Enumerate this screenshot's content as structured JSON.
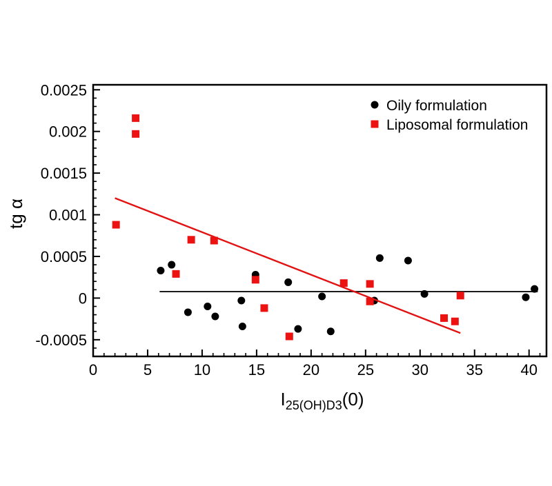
{
  "figure": {
    "ylabel": "tg α",
    "xlabel_prefix": "I",
    "xlabel_subscript": "25(OH)D3",
    "xlabel_suffix": "(0)"
  },
  "chart_data": {
    "type": "scatter",
    "title": "",
    "xlabel": "I25(OH)D3(0)",
    "ylabel": "tg α",
    "xlim": [
      0,
      41.6
    ],
    "ylim": [
      -0.0007,
      0.00256
    ],
    "grid": false,
    "legend_position": "top-right-inside",
    "x_major_ticks": [
      0,
      5,
      10,
      15,
      20,
      25,
      30,
      35,
      40
    ],
    "x_tick_labels": [
      "0",
      "5",
      "10",
      "15",
      "20",
      "25",
      "30",
      "35",
      "40"
    ],
    "x_minor_step": 1,
    "y_major_ticks": [
      -0.0005,
      0,
      0.0005,
      0.001,
      0.0015,
      0.002,
      0.0025
    ],
    "y_tick_labels": [
      "-0.0005",
      "0",
      "0.0005",
      "0.001",
      "0.0015",
      "0.002",
      "0.0025"
    ],
    "y_minor_step": 0.0001,
    "colors": {
      "oily": "#000000",
      "liposomal": "#ec1212"
    },
    "series": [
      {
        "name": "Oily formulation",
        "marker": "circle",
        "color": "#000000",
        "points": [
          [
            6.2,
            0.00033
          ],
          [
            7.2,
            0.0004
          ],
          [
            8.7,
            -0.00017
          ],
          [
            10.5,
            -0.0001
          ],
          [
            11.2,
            -0.00022
          ],
          [
            13.6,
            -3e-05
          ],
          [
            13.7,
            -0.00034
          ],
          [
            14.9,
            0.00028
          ],
          [
            17.9,
            0.00019
          ],
          [
            18.8,
            -0.00037
          ],
          [
            21.0,
            2e-05
          ],
          [
            21.8,
            -0.0004
          ],
          [
            25.8,
            -3e-05
          ],
          [
            26.3,
            0.00048
          ],
          [
            28.9,
            0.00045
          ],
          [
            30.4,
            5e-05
          ],
          [
            39.7,
            1e-05
          ],
          [
            40.5,
            0.00011
          ]
        ],
        "trend_line": {
          "x1": 6.1,
          "y1": 7.8e-05,
          "x2": 40.8,
          "y2": 7.8e-05,
          "color": "#1a1a1a"
        }
      },
      {
        "name": "Liposomal formulation",
        "marker": "square",
        "color": "#ec1212",
        "points": [
          [
            2.1,
            0.00088
          ],
          [
            3.9,
            0.00216
          ],
          [
            3.9,
            0.00197
          ],
          [
            7.6,
            0.00029
          ],
          [
            9.0,
            0.0007
          ],
          [
            11.1,
            0.00069
          ],
          [
            14.9,
            0.00022
          ],
          [
            15.7,
            -0.00012
          ],
          [
            18.0,
            -0.00046
          ],
          [
            23.0,
            0.00018
          ],
          [
            25.4,
            0.00017
          ],
          [
            25.4,
            -4e-05
          ],
          [
            32.2,
            -0.00024
          ],
          [
            33.2,
            -0.00028
          ],
          [
            33.7,
            3e-05
          ]
        ],
        "trend_line": {
          "x1": 2.0,
          "y1": 0.0012,
          "x2": 33.7,
          "y2": -0.00042,
          "color": "#e31212"
        }
      }
    ]
  }
}
